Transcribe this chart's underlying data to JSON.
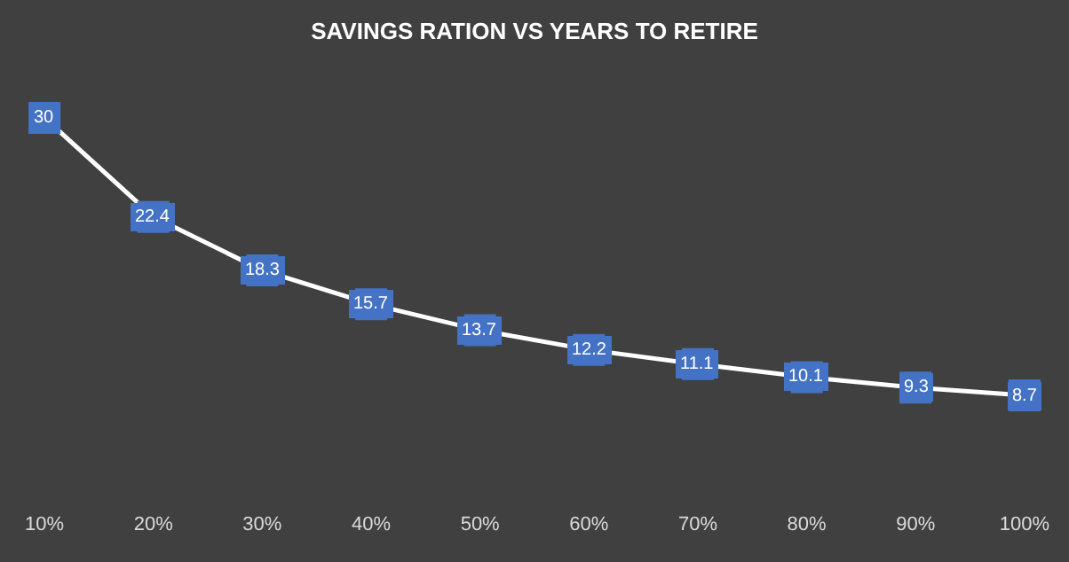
{
  "chart_data": {
    "type": "line",
    "title": "SAVINGS RATION VS YEARS TO RETIRE",
    "categories": [
      "10%",
      "20%",
      "30%",
      "40%",
      "50%",
      "60%",
      "70%",
      "80%",
      "90%",
      "100%"
    ],
    "series": [
      {
        "color": "#ffffff",
        "values": [
          30,
          22.4,
          18.3,
          15.7,
          13.7,
          12.2,
          11.1,
          10.1,
          9.3,
          8.7
        ]
      }
    ],
    "data_labels": true,
    "marker": "square",
    "line_style": "solid"
  }
}
